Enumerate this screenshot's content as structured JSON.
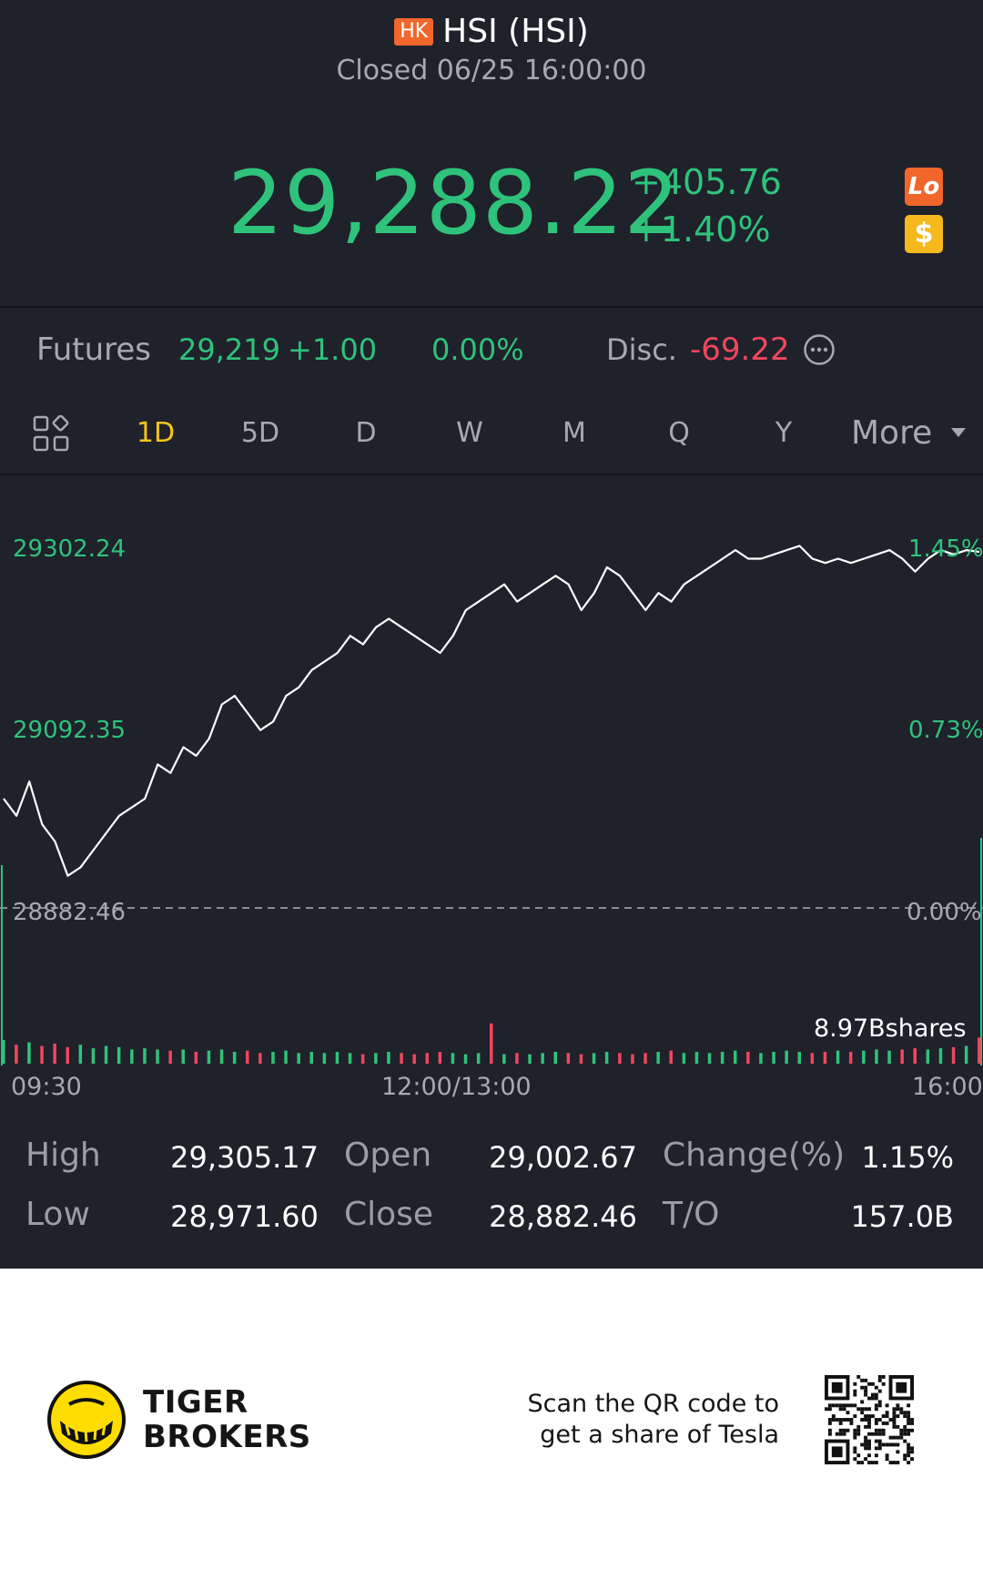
{
  "header": {
    "market_badge": "HK",
    "title": "HSI (HSI)",
    "status": "Closed 06/25 16:00:00"
  },
  "quote": {
    "price": "29,288.22",
    "change": "+405.76",
    "change_pct": "+1.40%",
    "badge_lo": "Lo",
    "badge_dollar": "$"
  },
  "futures": {
    "label": "Futures",
    "price": "29,219",
    "change": "+1.00",
    "change_pct": "0.00%",
    "disc_label": "Disc.",
    "disc_value": "-69.22"
  },
  "tabs": [
    "1D",
    "5D",
    "D",
    "W",
    "M",
    "Q",
    "Y"
  ],
  "more_label": "More",
  "colors": {
    "up": "#2fc27b",
    "down": "#f0475e",
    "accent": "#f5c518",
    "bg": "#1f212b"
  },
  "chart_data": {
    "type": "line",
    "left_axis_labels": [
      "29302.24",
      "29092.35",
      "28882.46"
    ],
    "right_axis_labels": [
      "1.45%",
      "0.73%",
      "0.00%"
    ],
    "ylim": [
      28882.46,
      29302.24
    ],
    "baseline": 28882.46,
    "x_tick_labels": [
      "09:30",
      "12:00/13:00",
      "16:00"
    ],
    "volume_label": "8.97Bshares",
    "series": [
      {
        "values": [
          29010,
          28990,
          29030,
          28980,
          28960,
          28920,
          28930,
          28950,
          28970,
          28990,
          29000,
          29010,
          29050,
          29040,
          29070,
          29060,
          29080,
          29120,
          29130,
          29110,
          29090,
          29100,
          29130,
          29140,
          29160,
          29170,
          29180,
          29200,
          29190,
          29210,
          29220,
          29210,
          29200,
          29190,
          29180,
          29200,
          29230,
          29240,
          29250,
          29260,
          29240,
          29250,
          29260,
          29270,
          29260,
          29230,
          29250,
          29280,
          29270,
          29250,
          29230,
          29250,
          29240,
          29260,
          29270,
          29280,
          29290,
          29300,
          29290,
          29290,
          29295,
          29300,
          29305,
          29290,
          29285,
          29290,
          29285,
          29290,
          29295,
          29300,
          29290,
          29275,
          29290,
          29300,
          29295,
          29300,
          29298
        ]
      }
    ],
    "volume": [
      20,
      16,
      18,
      15,
      17,
      14,
      16,
      13,
      15,
      14,
      12,
      13,
      12,
      11,
      12,
      10,
      11,
      12,
      10,
      11,
      9,
      10,
      11,
      9,
      10,
      9,
      10,
      9,
      8,
      9,
      10,
      9,
      8,
      9,
      10,
      9,
      8,
      9,
      34,
      8,
      9,
      8,
      9,
      10,
      9,
      8,
      9,
      10,
      9,
      8,
      9,
      10,
      11,
      9,
      10,
      9,
      10,
      11,
      10,
      9,
      10,
      11,
      10,
      9,
      10,
      11,
      10,
      11,
      12,
      11,
      12,
      13,
      12,
      13,
      14,
      15,
      22
    ]
  },
  "stats": {
    "high_label": "High",
    "high": "29,305.17",
    "low_label": "Low",
    "low": "28,971.60",
    "open_label": "Open",
    "open": "29,002.67",
    "close_label": "Close",
    "close": "28,882.46",
    "changepct_label": "Change(%)",
    "changepct": "1.15%",
    "to_label": "T/O",
    "to": "157.0B"
  },
  "footer": {
    "brand_line1": "TIGER",
    "brand_line2": "BROKERS",
    "promo_line1": "Scan the QR code to",
    "promo_line2": "get a share of Tesla"
  }
}
